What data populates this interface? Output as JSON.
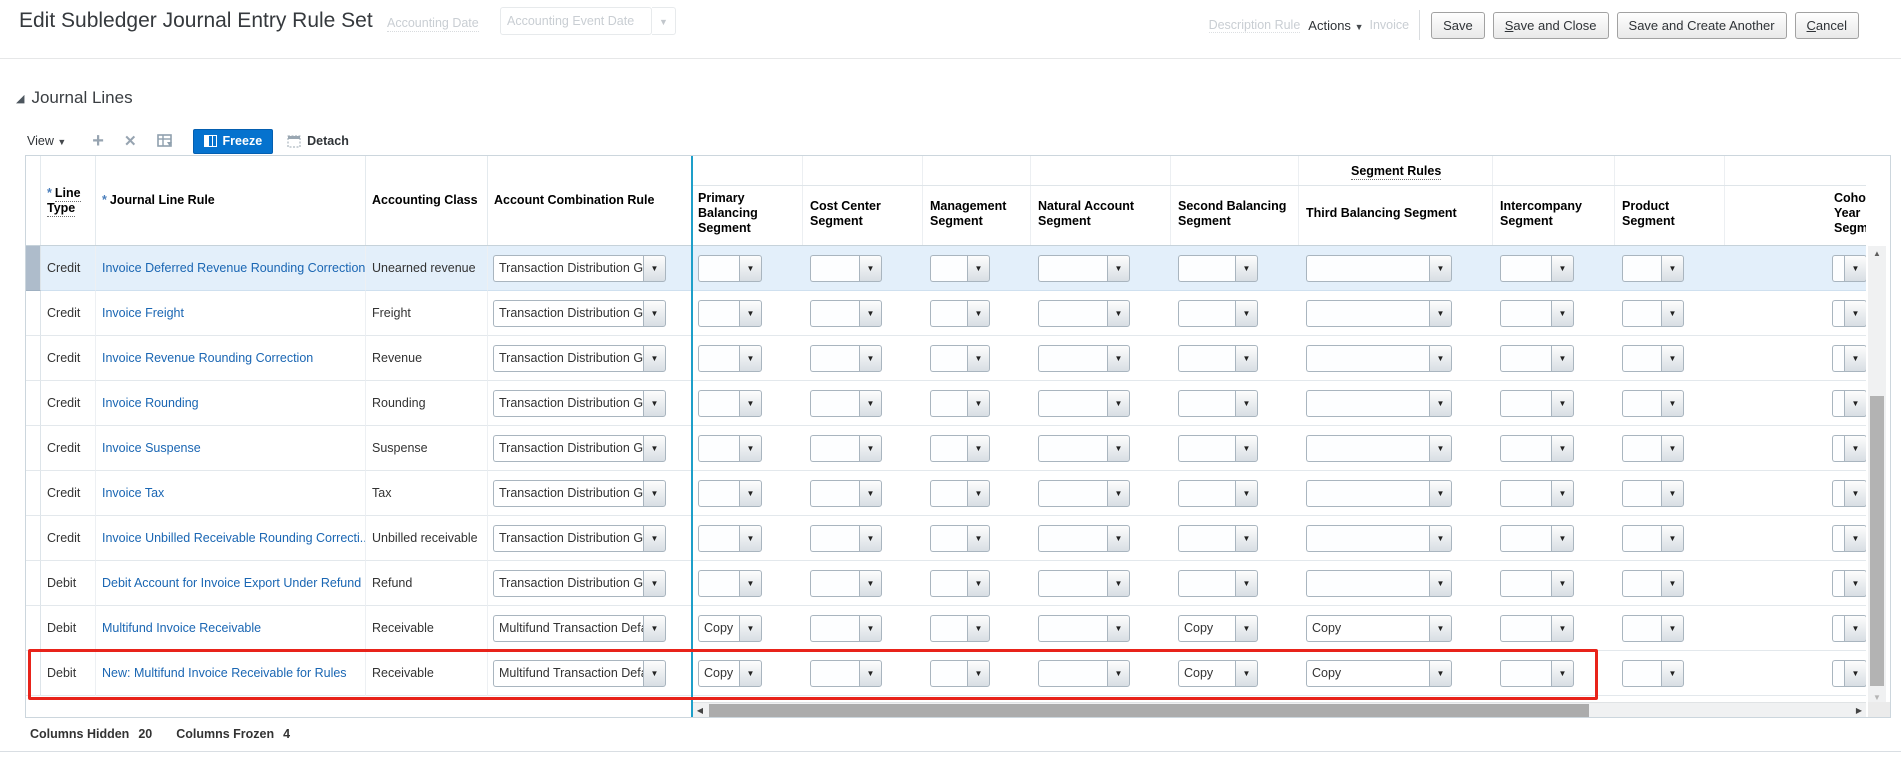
{
  "header": {
    "title": "Edit Subledger Journal Entry Rule Set",
    "ghost": {
      "accounting_date": "Accounting Date",
      "accounting_event_date": "Accounting Event Date",
      "description_rule": "Description Rule",
      "invoice": "Invoice"
    },
    "actions_label": "Actions",
    "buttons": {
      "save": "Save",
      "save_and_close": "Save and Close",
      "save_and_create_another": "Save and Create Another",
      "cancel": "Cancel"
    }
  },
  "section": {
    "title": "Journal Lines"
  },
  "toolbar": {
    "view_label": "View",
    "freeze_label": "Freeze",
    "detach_label": "Detach",
    "icons": [
      "plus-icon",
      "delete-x-icon",
      "grid-icon",
      "freeze-grid-icon",
      "detach-window-icon"
    ]
  },
  "table": {
    "required_marker": "*",
    "group_header": "Segment Rules",
    "frozen_columns": {
      "line_type": "Line Type",
      "journal_line_rule": "Journal Line Rule",
      "accounting_class": "Accounting Class",
      "account_combination_rule": "Account Combination Rule"
    },
    "segment_columns": [
      "Primary Balancing Segment",
      "Cost Center Segment",
      "Management Segment",
      "Natural Account Segment",
      "Second Balancing Segment",
      "Third Balancing Segment",
      "Intercompany Segment",
      "Product Segment",
      "Cohort Year Segment"
    ],
    "rows": [
      {
        "line_type": "Credit",
        "journal_line_rule": "Invoice Deferred Revenue Rounding Correction",
        "accounting_class": "Unearned revenue",
        "account_combination_rule": "Transaction Distribution Gl",
        "segments": [
          "",
          "",
          "",
          "",
          "",
          "",
          "",
          "",
          ""
        ],
        "selected": true,
        "annotated": false
      },
      {
        "line_type": "Credit",
        "journal_line_rule": "Invoice Freight",
        "accounting_class": "Freight",
        "account_combination_rule": "Transaction Distribution Gl",
        "segments": [
          "",
          "",
          "",
          "",
          "",
          "",
          "",
          "",
          ""
        ],
        "selected": false,
        "annotated": false
      },
      {
        "line_type": "Credit",
        "journal_line_rule": "Invoice Revenue Rounding Correction",
        "accounting_class": "Revenue",
        "account_combination_rule": "Transaction Distribution Gl",
        "segments": [
          "",
          "",
          "",
          "",
          "",
          "",
          "",
          "",
          ""
        ],
        "selected": false,
        "annotated": false
      },
      {
        "line_type": "Credit",
        "journal_line_rule": "Invoice Rounding",
        "accounting_class": "Rounding",
        "account_combination_rule": "Transaction Distribution Gl",
        "segments": [
          "",
          "",
          "",
          "",
          "",
          "",
          "",
          "",
          ""
        ],
        "selected": false,
        "annotated": false
      },
      {
        "line_type": "Credit",
        "journal_line_rule": "Invoice Suspense",
        "accounting_class": "Suspense",
        "account_combination_rule": "Transaction Distribution Gl",
        "segments": [
          "",
          "",
          "",
          "",
          "",
          "",
          "",
          "",
          ""
        ],
        "selected": false,
        "annotated": false
      },
      {
        "line_type": "Credit",
        "journal_line_rule": "Invoice Tax",
        "accounting_class": "Tax",
        "account_combination_rule": "Transaction Distribution Gl",
        "segments": [
          "",
          "",
          "",
          "",
          "",
          "",
          "",
          "",
          ""
        ],
        "selected": false,
        "annotated": false
      },
      {
        "line_type": "Credit",
        "journal_line_rule": "Invoice Unbilled Receivable Rounding Correcti...",
        "accounting_class": "Unbilled receivable",
        "account_combination_rule": "Transaction Distribution Gl",
        "segments": [
          "",
          "",
          "",
          "",
          "",
          "",
          "",
          "",
          ""
        ],
        "selected": false,
        "annotated": false
      },
      {
        "line_type": "Debit",
        "journal_line_rule": "Debit Account for Invoice Export Under Refund",
        "accounting_class": "Refund",
        "account_combination_rule": "Transaction Distribution Gl",
        "segments": [
          "",
          "",
          "",
          "",
          "",
          "",
          "",
          "",
          ""
        ],
        "selected": false,
        "annotated": false
      },
      {
        "line_type": "Debit",
        "journal_line_rule": "Multifund Invoice Receivable",
        "accounting_class": "Receivable",
        "account_combination_rule": "Multifund Transaction Defa",
        "segments": [
          "Copy",
          "",
          "",
          "",
          "Copy",
          "Copy",
          "",
          "",
          ""
        ],
        "selected": false,
        "annotated": false
      },
      {
        "line_type": "Debit",
        "journal_line_rule": "New: Multifund Invoice Receivable for Rules",
        "accounting_class": "Receivable",
        "account_combination_rule": "Multifund Transaction Defa",
        "segments": [
          "Copy",
          "",
          "",
          "",
          "Copy",
          "Copy",
          "",
          "",
          ""
        ],
        "selected": false,
        "annotated": true
      }
    ]
  },
  "statusbar": {
    "columns_hidden_label": "Columns Hidden",
    "columns_hidden_value": "20",
    "columns_frozen_label": "Columns Frozen",
    "columns_frozen_value": "4"
  },
  "colors": {
    "freeze_button": "#0572ce",
    "link": "#1a66b3",
    "selected_row": "#e3effa",
    "frozen_divider": "#1e9fc9",
    "annotation_box": "#e8231a"
  }
}
